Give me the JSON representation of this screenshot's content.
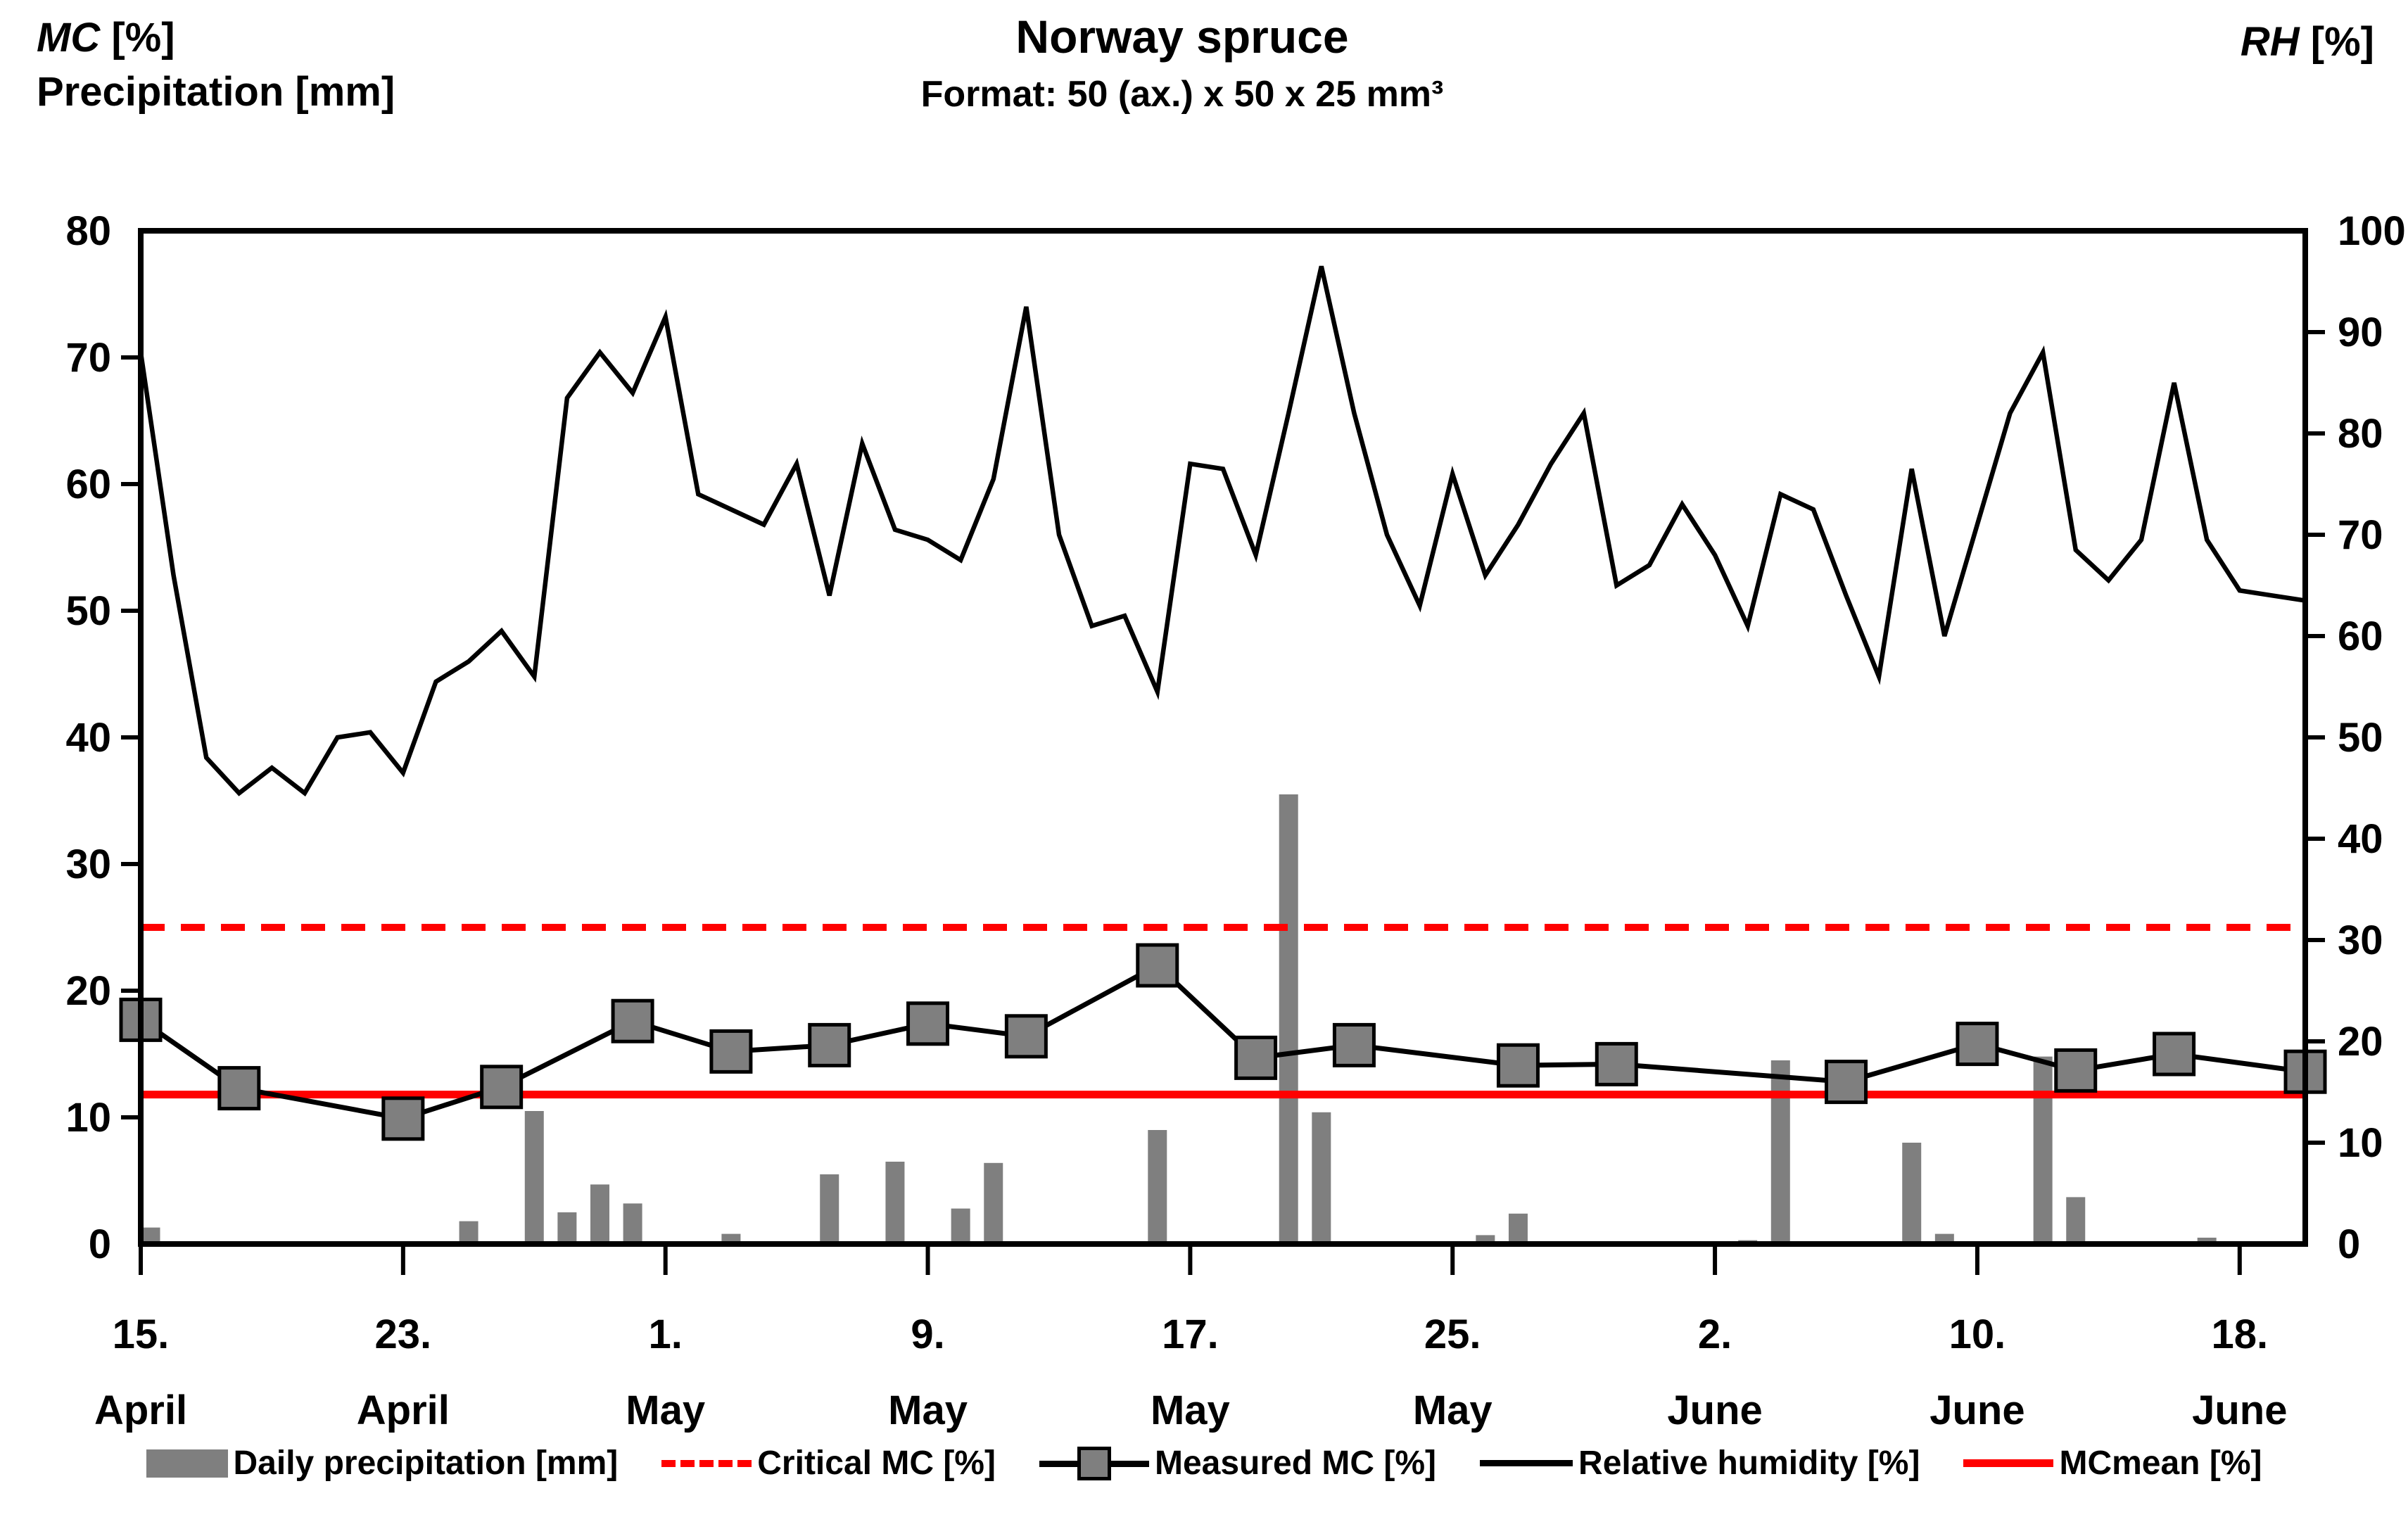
{
  "header": {
    "left_axis_label_italic": "MC",
    "left_axis_label_unit": " [%]",
    "left_axis_label_line2": "Precipitation [mm]",
    "title": "Norway spruce",
    "subtitle": "Format: 50 (ax.) x 50 x 25 mm³",
    "right_axis_label_italic": "RH",
    "right_axis_label_unit": " [%]"
  },
  "legend": {
    "items": [
      {
        "label": "Daily precipitation [mm]",
        "swatch": "gray-bar"
      },
      {
        "label": "Critical MC [%]",
        "swatch": "red-dashed-line"
      },
      {
        "label": "Measured MC [%]",
        "swatch": "black-line-gray-square"
      },
      {
        "label": "Relative humidity [%]",
        "swatch": "black-line"
      },
      {
        "label": "MCmean [%]",
        "swatch": "red-line"
      }
    ]
  },
  "chart_data": {
    "type": "combo-bar-line",
    "x_start_date": "15. April",
    "x_end_date": "20. June",
    "days_total": 67,
    "grid": "off",
    "x_ticks": [
      {
        "day": 0,
        "top": "15.",
        "bottom": "April"
      },
      {
        "day": 8,
        "top": "23.",
        "bottom": "April"
      },
      {
        "day": 16,
        "top": "1.",
        "bottom": "May"
      },
      {
        "day": 24,
        "top": "9.",
        "bottom": "May"
      },
      {
        "day": 32,
        "top": "17.",
        "bottom": "May"
      },
      {
        "day": 40,
        "top": "25.",
        "bottom": "May"
      },
      {
        "day": 48,
        "top": "2.",
        "bottom": "June"
      },
      {
        "day": 56,
        "top": "10.",
        "bottom": "June"
      },
      {
        "day": 64,
        "top": "18.",
        "bottom": "June"
      }
    ],
    "left_axis": {
      "label": "MC [%] / Precipitation [mm]",
      "min": 0,
      "max": 80,
      "step": 10,
      "ticks": [
        0,
        10,
        20,
        30,
        40,
        50,
        60,
        70,
        80
      ]
    },
    "right_axis": {
      "label": "RH [%]",
      "min": 0,
      "max": 100,
      "step": 10,
      "ticks": [
        0,
        10,
        20,
        30,
        40,
        50,
        60,
        70,
        80,
        90,
        100
      ]
    },
    "colors": {
      "bar": "#7F7F7F",
      "marker_fill": "#7F7F7F",
      "line_black": "#000000",
      "red": "#FF0000"
    },
    "series": {
      "daily_precipitation_mm": {
        "type": "bar",
        "axis": "left",
        "points": [
          {
            "day": 0,
            "value": 1.3
          },
          {
            "day": 10,
            "value": 1.8
          },
          {
            "day": 12,
            "value": 10.5
          },
          {
            "day": 13,
            "value": 2.5
          },
          {
            "day": 14,
            "value": 4.7
          },
          {
            "day": 15,
            "value": 3.2
          },
          {
            "day": 18,
            "value": 0.8
          },
          {
            "day": 21,
            "value": 5.5
          },
          {
            "day": 23,
            "value": 6.5
          },
          {
            "day": 25,
            "value": 2.8
          },
          {
            "day": 26,
            "value": 6.4
          },
          {
            "day": 31,
            "value": 9.0
          },
          {
            "day": 35,
            "value": 35.5
          },
          {
            "day": 36,
            "value": 10.4
          },
          {
            "day": 41,
            "value": 0.7
          },
          {
            "day": 42,
            "value": 2.4
          },
          {
            "day": 49,
            "value": 0.3
          },
          {
            "day": 50,
            "value": 14.5
          },
          {
            "day": 54,
            "value": 8.0
          },
          {
            "day": 55,
            "value": 0.8
          },
          {
            "day": 58,
            "value": 14.8
          },
          {
            "day": 59,
            "value": 3.7
          },
          {
            "day": 63,
            "value": 0.5
          }
        ]
      },
      "critical_mc_pct": {
        "type": "hline-dashed",
        "axis": "left",
        "value": 25
      },
      "mc_mean_pct": {
        "type": "hline-solid",
        "axis": "left",
        "value": 11.8
      },
      "measured_mc_pct": {
        "type": "line-with-square-markers",
        "axis": "left",
        "points": [
          {
            "day": 0,
            "value": 17.7
          },
          {
            "day": 3,
            "value": 12.3
          },
          {
            "day": 8,
            "value": 9.9
          },
          {
            "day": 11,
            "value": 12.4
          },
          {
            "day": 15,
            "value": 17.6
          },
          {
            "day": 18,
            "value": 15.2
          },
          {
            "day": 21,
            "value": 15.7
          },
          {
            "day": 24,
            "value": 17.4
          },
          {
            "day": 27,
            "value": 16.4
          },
          {
            "day": 31,
            "value": 22.0
          },
          {
            "day": 34,
            "value": 14.7
          },
          {
            "day": 37,
            "value": 15.7
          },
          {
            "day": 42,
            "value": 14.1
          },
          {
            "day": 45,
            "value": 14.2
          },
          {
            "day": 52,
            "value": 12.8
          },
          {
            "day": 56,
            "value": 15.8
          },
          {
            "day": 59,
            "value": 13.7
          },
          {
            "day": 62,
            "value": 15.0
          },
          {
            "day": 66,
            "value": 13.6
          }
        ]
      },
      "relative_humidity_pct": {
        "type": "line",
        "axis": "right",
        "values": [
          88,
          66,
          48,
          44.5,
          47,
          44.5,
          50,
          50.5,
          46.5,
          55.5,
          57.5,
          60.5,
          56,
          83.5,
          88,
          84,
          91.5,
          74,
          72.5,
          71,
          77,
          64,
          79,
          70.5,
          69.5,
          67.5,
          75.5,
          92.5,
          70,
          61,
          62,
          54.5,
          77,
          76.5,
          68,
          82,
          96.5,
          82,
          70,
          63,
          76,
          66,
          71,
          77,
          82,
          65,
          67,
          73,
          68,
          61,
          74,
          72.5,
          64,
          56,
          76.5,
          60,
          71,
          82,
          88,
          68.5,
          65.5,
          69.5,
          85,
          69.5,
          64.5,
          64,
          63.5
        ]
      }
    }
  }
}
